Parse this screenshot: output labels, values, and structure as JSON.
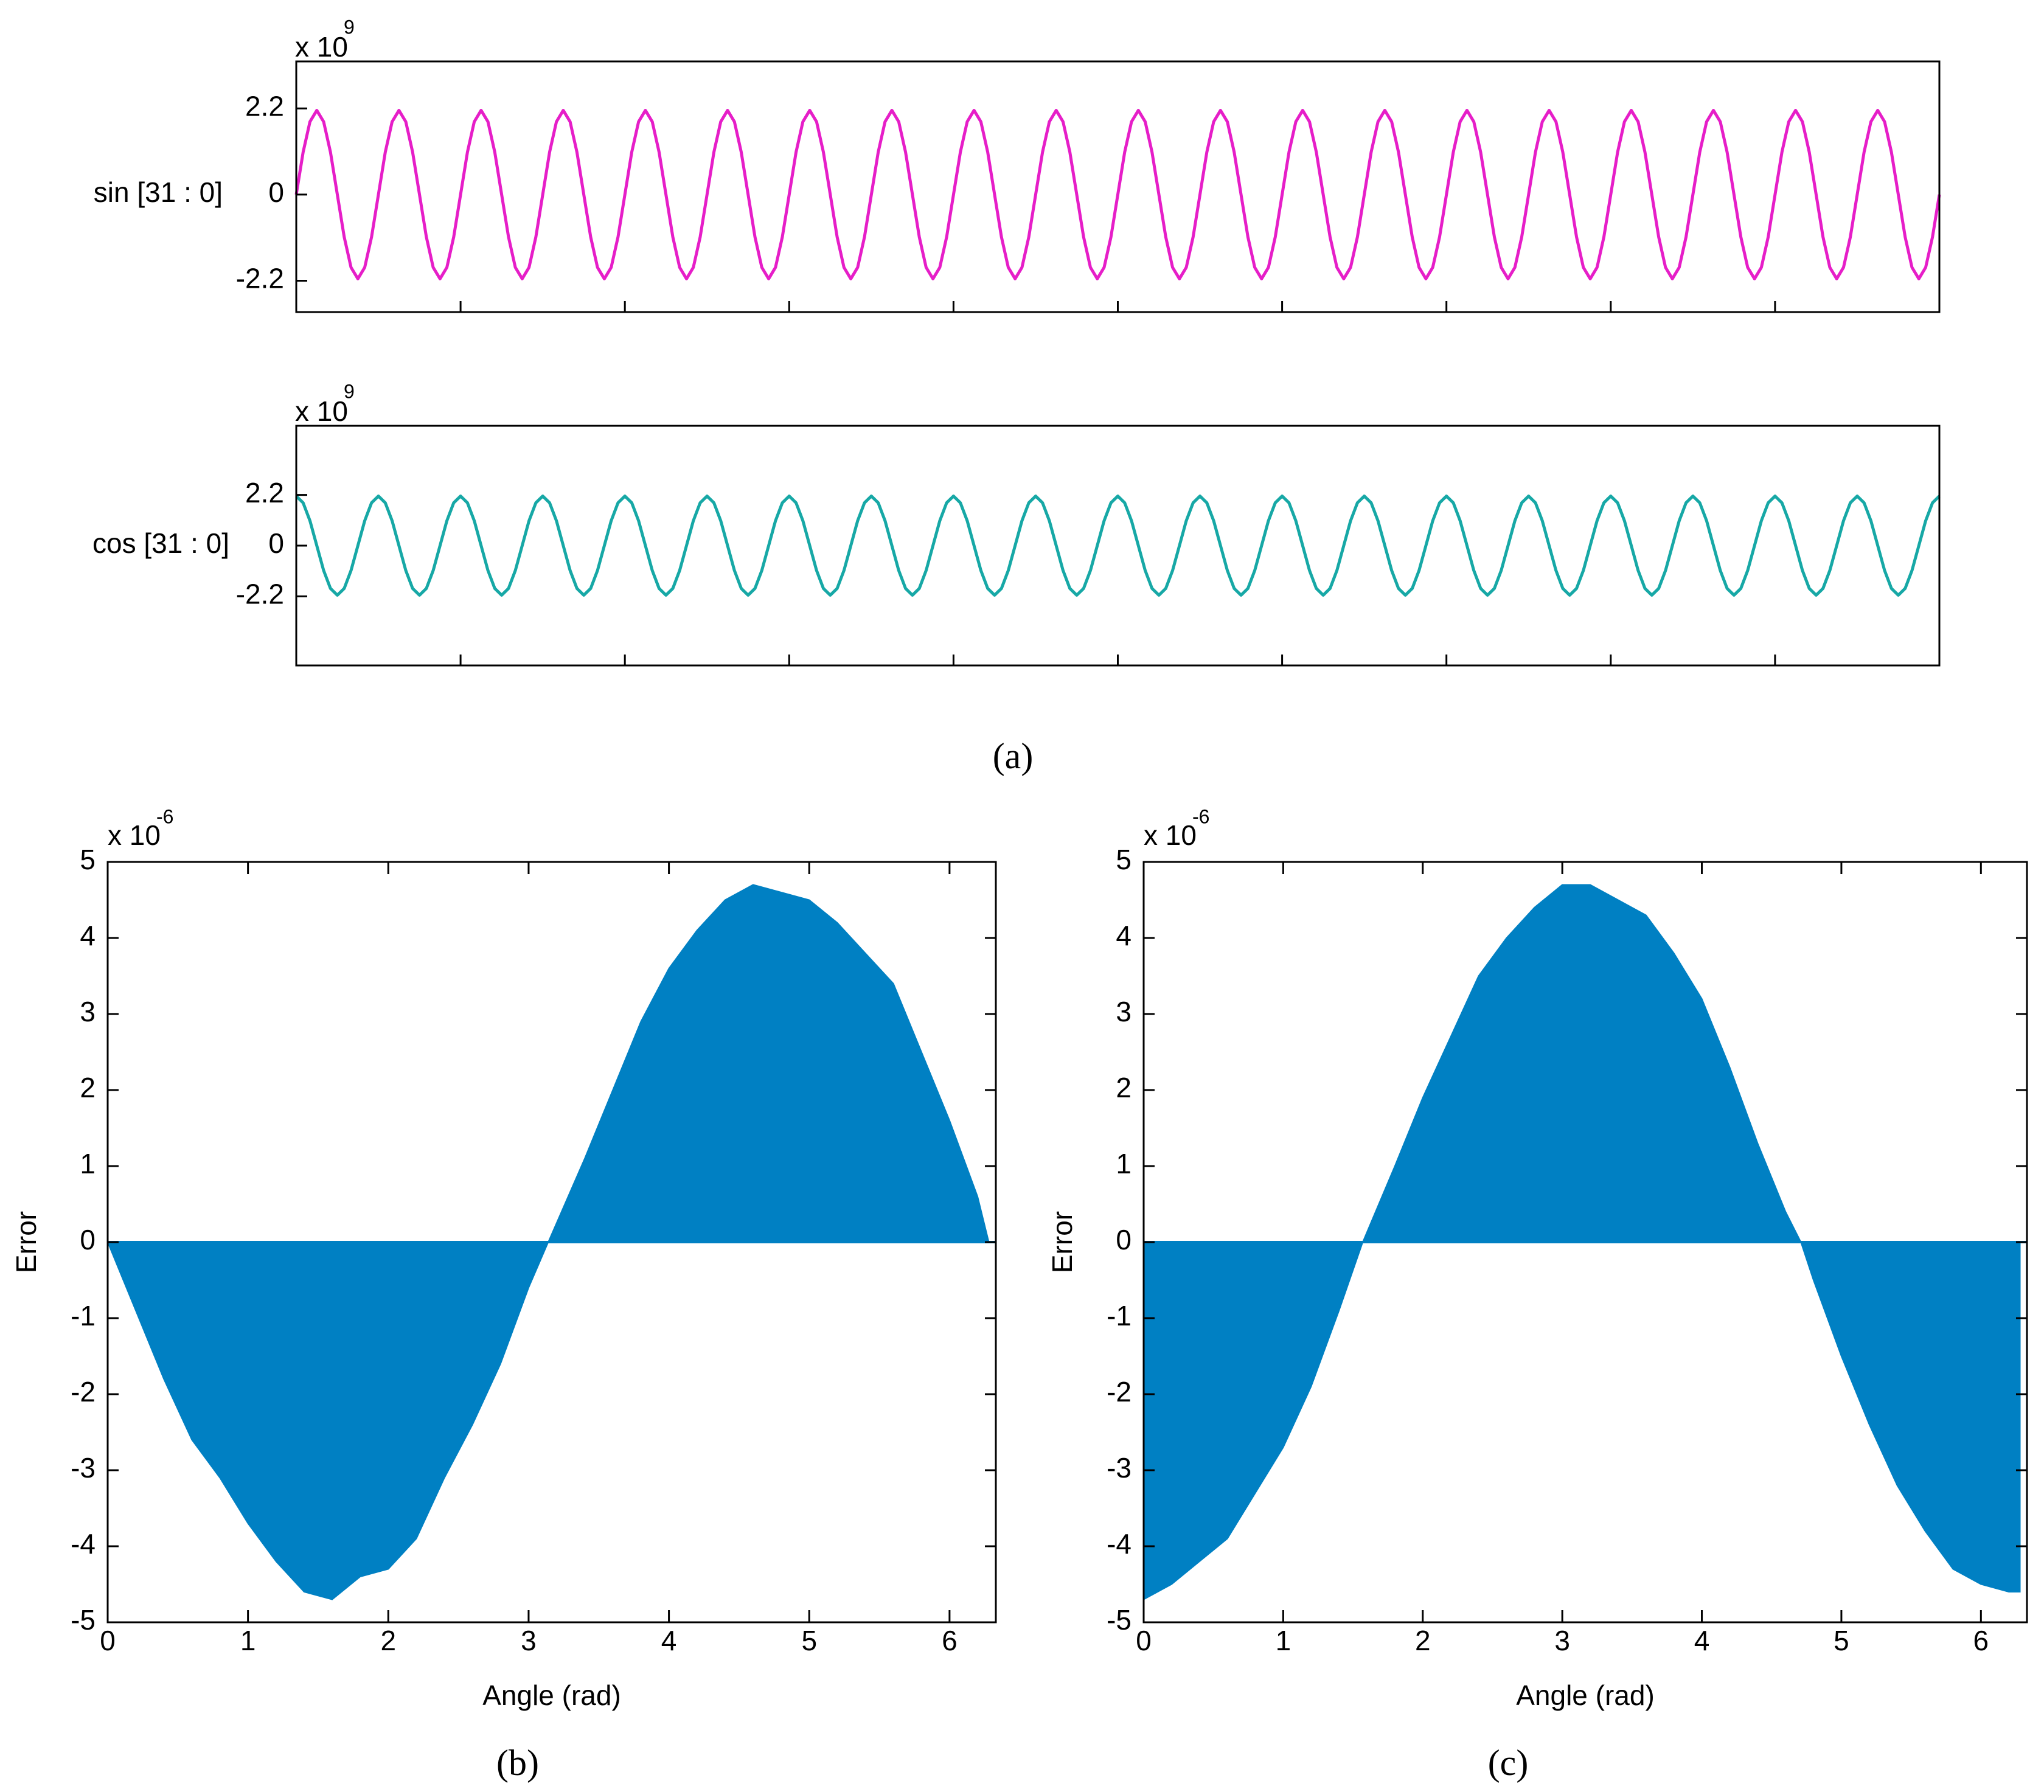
{
  "panel_labels": [
    "(a)",
    "(b)",
    "(c)"
  ],
  "chart_data": [
    {
      "type": "line",
      "y_label": "sin [31 : 0]",
      "exponent_base": "x 10",
      "exponent_power": "9",
      "color": "#e61ec8",
      "ylim": [
        -3.0,
        3.4
      ],
      "yticks": [
        -2.2,
        0,
        2.2
      ],
      "values": [
        0,
        1.08,
        1.86,
        2.15,
        1.86,
        1.08,
        0,
        -1.08,
        -1.86,
        -2.15,
        -1.86,
        -1.08,
        0,
        1.08,
        1.86,
        2.15,
        1.86,
        1.08,
        0,
        -1.08,
        -1.86,
        -2.15,
        -1.86,
        -1.08,
        0,
        1.08,
        1.86,
        2.15,
        1.86,
        1.08,
        0,
        -1.08,
        -1.86,
        -2.15,
        -1.86,
        -1.08,
        0,
        1.08,
        1.86,
        2.15,
        1.86,
        1.08,
        0,
        -1.08,
        -1.86,
        -2.15,
        -1.86,
        -1.08,
        0,
        1.08,
        1.86,
        2.15,
        1.86,
        1.08,
        0,
        -1.08,
        -1.86,
        -2.15,
        -1.86,
        -1.08,
        0,
        1.08,
        1.86,
        2.15,
        1.86,
        1.08,
        0,
        -1.08,
        -1.86,
        -2.15,
        -1.86,
        -1.08,
        0,
        1.08,
        1.86,
        2.15,
        1.86,
        1.08,
        0,
        -1.08,
        -1.86,
        -2.15,
        -1.86,
        -1.08,
        0,
        1.08,
        1.86,
        2.15,
        1.86,
        1.08,
        0,
        -1.08,
        -1.86,
        -2.15,
        -1.86,
        -1.08,
        0,
        1.08,
        1.86,
        2.15,
        1.86,
        1.08,
        0,
        -1.08,
        -1.86,
        -2.15,
        -1.86,
        -1.08,
        0,
        1.08,
        1.86,
        2.15,
        1.86,
        1.08,
        0,
        -1.08,
        -1.86,
        -2.15,
        -1.86,
        -1.08,
        0,
        1.08,
        1.86,
        2.15,
        1.86,
        1.08,
        0,
        -1.08,
        -1.86,
        -2.15,
        -1.86,
        -1.08,
        0,
        1.08,
        1.86,
        2.15,
        1.86,
        1.08,
        0,
        -1.08,
        -1.86,
        -2.15,
        -1.86,
        -1.08,
        0,
        1.08,
        1.86,
        2.15,
        1.86,
        1.08,
        0,
        -1.08,
        -1.86,
        -2.15,
        -1.86,
        -1.08,
        0,
        1.08,
        1.86,
        2.15,
        1.86,
        1.08,
        0,
        -1.08,
        -1.86,
        -2.15,
        -1.86,
        -1.08,
        0,
        1.08,
        1.86,
        2.15,
        1.86,
        1.08,
        0,
        -1.08,
        -1.86,
        -2.15,
        -1.86,
        -1.08,
        0,
        1.08,
        1.86,
        2.15,
        1.86,
        1.08,
        0,
        -1.08,
        -1.86,
        -2.15,
        -1.86,
        -1.08,
        0,
        1.08,
        1.86,
        2.15,
        1.86,
        1.08,
        0,
        -1.08,
        -1.86,
        -2.15,
        -1.86,
        -1.08,
        0,
        1.08,
        1.86,
        2.15,
        1.86,
        1.08,
        0,
        -1.08,
        -1.86,
        -2.15,
        -1.86,
        -1.08,
        0,
        1.08,
        1.86,
        2.15,
        1.86,
        1.08,
        0,
        -1.08,
        -1.86,
        -2.15,
        -1.86,
        -1.08,
        0,
        1.08,
        1.86,
        2.15,
        1.86,
        1.08,
        0,
        -1.08,
        -1.86,
        -2.15,
        -1.86,
        -1.08,
        0
      ]
    },
    {
      "type": "line",
      "y_label": "cos [31 : 0]",
      "exponent_base": "x 10",
      "exponent_power": "9",
      "color": "#17a8a6",
      "ylim": [
        -5.2,
        5.2
      ],
      "yticks": [
        -2.2,
        0,
        2.2
      ],
      "values": [
        2.15,
        1.86,
        1.08,
        0,
        -1.08,
        -1.86,
        -2.15,
        -1.86,
        -1.08,
        0,
        1.08,
        1.86,
        2.15,
        1.86,
        1.08,
        0,
        -1.08,
        -1.86,
        -2.15,
        -1.86,
        -1.08,
        0,
        1.08,
        1.86,
        2.15,
        1.86,
        1.08,
        0,
        -1.08,
        -1.86,
        -2.15,
        -1.86,
        -1.08,
        0,
        1.08,
        1.86,
        2.15,
        1.86,
        1.08,
        0,
        -1.08,
        -1.86,
        -2.15,
        -1.86,
        -1.08,
        0,
        1.08,
        1.86,
        2.15,
        1.86,
        1.08,
        0,
        -1.08,
        -1.86,
        -2.15,
        -1.86,
        -1.08,
        0,
        1.08,
        1.86,
        2.15,
        1.86,
        1.08,
        0,
        -1.08,
        -1.86,
        -2.15,
        -1.86,
        -1.08,
        0,
        1.08,
        1.86,
        2.15,
        1.86,
        1.08,
        0,
        -1.08,
        -1.86,
        -2.15,
        -1.86,
        -1.08,
        0,
        1.08,
        1.86,
        2.15,
        1.86,
        1.08,
        0,
        -1.08,
        -1.86,
        -2.15,
        -1.86,
        -1.08,
        0,
        1.08,
        1.86,
        2.15,
        1.86,
        1.08,
        0,
        -1.08,
        -1.86,
        -2.15,
        -1.86,
        -1.08,
        0,
        1.08,
        1.86,
        2.15,
        1.86,
        1.08,
        0,
        -1.08,
        -1.86,
        -2.15,
        -1.86,
        -1.08,
        0,
        1.08,
        1.86,
        2.15,
        1.86,
        1.08,
        0,
        -1.08,
        -1.86,
        -2.15,
        -1.86,
        -1.08,
        0,
        1.08,
        1.86,
        2.15,
        1.86,
        1.08,
        0,
        -1.08,
        -1.86,
        -2.15,
        -1.86,
        -1.08,
        0,
        1.08,
        1.86,
        2.15,
        1.86,
        1.08,
        0,
        -1.08,
        -1.86,
        -2.15,
        -1.86,
        -1.08,
        0,
        1.08,
        1.86,
        2.15,
        1.86,
        1.08,
        0,
        -1.08,
        -1.86,
        -2.15,
        -1.86,
        -1.08,
        0,
        1.08,
        1.86,
        2.15,
        1.86,
        1.08,
        0,
        -1.08,
        -1.86,
        -2.15,
        -1.86,
        -1.08,
        0,
        1.08,
        1.86,
        2.15,
        1.86,
        1.08,
        0,
        -1.08,
        -1.86,
        -2.15,
        -1.86,
        -1.08,
        0,
        1.08,
        1.86,
        2.15,
        1.86,
        1.08,
        0,
        -1.08,
        -1.86,
        -2.15,
        -1.86,
        -1.08,
        0,
        1.08,
        1.86,
        2.15,
        1.86,
        1.08,
        0,
        -1.08,
        -1.86,
        -2.15,
        -1.86,
        -1.08,
        0,
        1.08,
        1.86,
        2.15,
        1.86,
        1.08,
        0,
        -1.08,
        -1.86,
        -2.15,
        -1.86,
        -1.08,
        0,
        1.08,
        1.86,
        2.15,
        1.86,
        1.08,
        0,
        -1.08,
        -1.86,
        -2.15,
        -1.86,
        -1.08,
        0,
        1.08,
        1.86,
        2.15
      ]
    },
    {
      "type": "area",
      "x_label": "Angle (rad)",
      "y_label": "Error",
      "exponent_base": "x 10",
      "exponent_power": "-6",
      "color": "#0080c3",
      "xlim": [
        0,
        6.33
      ],
      "xticks": [
        0,
        1,
        2,
        3,
        4,
        5,
        6
      ],
      "ylim": [
        -5,
        5
      ],
      "yticks": [
        -5,
        -4,
        -3,
        -2,
        -1,
        0,
        1,
        2,
        3,
        4,
        5
      ],
      "x": [
        0,
        0.2,
        0.4,
        0.6,
        0.8,
        1.0,
        1.2,
        1.4,
        1.6,
        1.8,
        2.0,
        2.2,
        2.4,
        2.6,
        2.8,
        3.0,
        3.14,
        3.4,
        3.6,
        3.8,
        4.0,
        4.2,
        4.4,
        4.6,
        4.8,
        5.0,
        5.2,
        5.4,
        5.6,
        5.8,
        6.0,
        6.2,
        6.28
      ],
      "values": [
        0,
        -0.9,
        -1.8,
        -2.6,
        -3.1,
        -3.7,
        -4.2,
        -4.6,
        -4.7,
        -4.4,
        -4.3,
        -3.9,
        -3.1,
        -2.4,
        -1.6,
        -0.6,
        0,
        1.1,
        2.0,
        2.9,
        3.6,
        4.1,
        4.5,
        4.7,
        4.6,
        4.5,
        4.2,
        3.8,
        3.4,
        2.5,
        1.6,
        0.6,
        0
      ]
    },
    {
      "type": "area",
      "x_label": "Angle (rad)",
      "y_label": "Error",
      "exponent_base": "x 10",
      "exponent_power": "-6",
      "color": "#0080c3",
      "xlim": [
        0,
        6.33
      ],
      "xticks": [
        0,
        1,
        2,
        3,
        4,
        5,
        6
      ],
      "ylim": [
        -5,
        5
      ],
      "yticks": [
        -5,
        -4,
        -3,
        -2,
        -1,
        0,
        1,
        2,
        3,
        4,
        5
      ],
      "x": [
        0,
        0.2,
        0.4,
        0.6,
        0.8,
        1.0,
        1.2,
        1.4,
        1.57,
        1.8,
        2.0,
        2.2,
        2.4,
        2.6,
        2.8,
        3.0,
        3.2,
        3.4,
        3.6,
        3.8,
        4.0,
        4.2,
        4.4,
        4.6,
        4.71,
        4.8,
        5.0,
        5.2,
        5.4,
        5.6,
        5.8,
        6.0,
        6.2,
        6.28
      ],
      "values": [
        -4.7,
        -4.5,
        -4.2,
        -3.9,
        -3.3,
        -2.7,
        -1.9,
        -0.9,
        0,
        1.0,
        1.9,
        2.7,
        3.5,
        4.0,
        4.4,
        4.7,
        4.7,
        4.5,
        4.3,
        3.8,
        3.2,
        2.3,
        1.3,
        0.4,
        0,
        -0.5,
        -1.5,
        -2.4,
        -3.2,
        -3.8,
        -4.3,
        -4.5,
        -4.6,
        -4.6
      ]
    }
  ]
}
